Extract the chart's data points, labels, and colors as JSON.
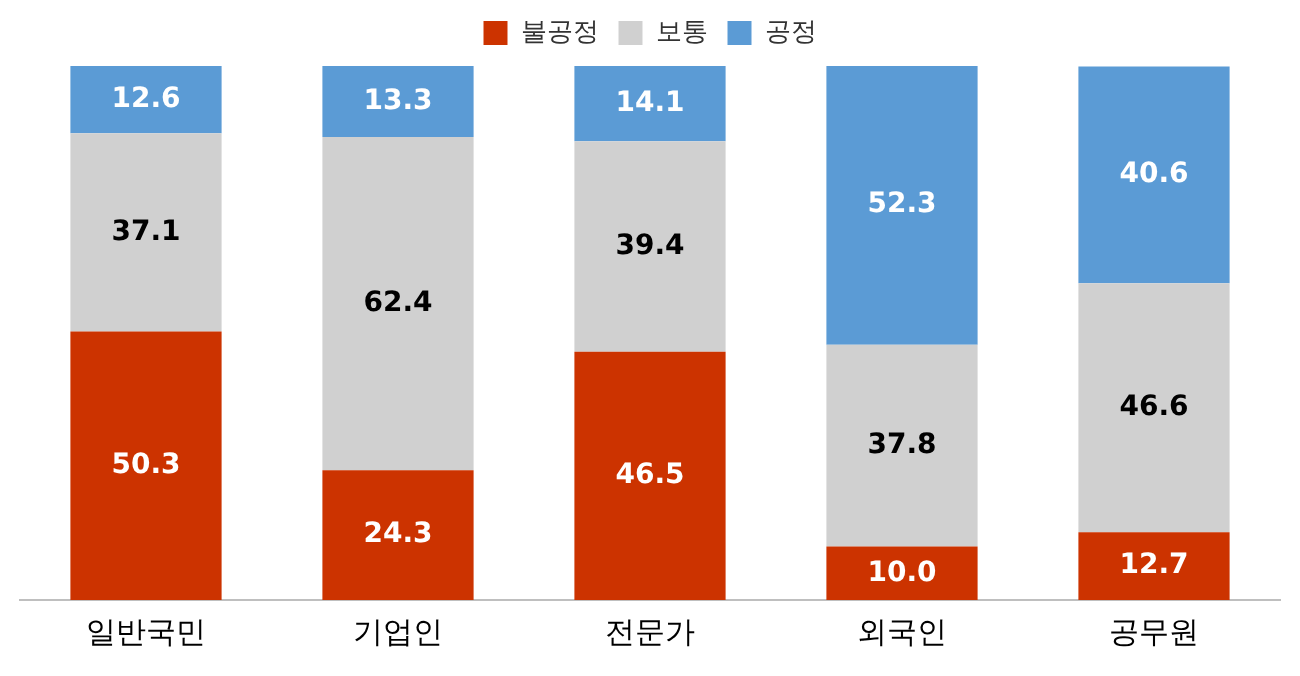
{
  "chart_data": {
    "type": "bar",
    "stacked": true,
    "categories": [
      "일반국민",
      "기업인",
      "전문가",
      "외국인",
      "공무원"
    ],
    "series": [
      {
        "name": "불공정",
        "color": "#cc3300",
        "values": [
          50.3,
          24.3,
          46.5,
          10.0,
          12.7
        ],
        "value_labels": [
          "50.3",
          "24.3",
          "46.5",
          "10.0",
          "12.7"
        ]
      },
      {
        "name": "보통",
        "color": "#d0d0d0",
        "values": [
          37.1,
          62.4,
          39.4,
          37.8,
          46.6
        ],
        "value_labels": [
          "37.1",
          "62.4",
          "39.4",
          "37.8",
          "46.6"
        ]
      },
      {
        "name": "공정",
        "color": "#5b9bd5",
        "values": [
          12.6,
          13.3,
          14.1,
          52.3,
          40.6
        ],
        "value_labels": [
          "12.6",
          "13.3",
          "14.1",
          "52.3",
          "40.6"
        ]
      }
    ],
    "ylim": [
      0,
      100
    ],
    "tick_labels": "x",
    "legend": "top",
    "grid": false
  }
}
